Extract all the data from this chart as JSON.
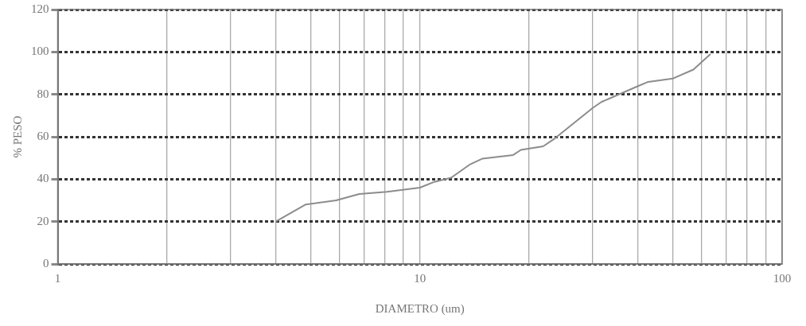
{
  "chart_data": {
    "type": "line",
    "xlabel": "DIAMETRO (um)",
    "ylabel": "% PESO",
    "x": [
      4.0,
      4.83,
      5.87,
      6.8,
      8.1,
      10,
      10.9,
      12.2,
      13.7,
      14.9,
      18.1,
      19.0,
      21.9,
      23.4,
      30.0,
      31.7,
      39.9,
      42.7,
      50,
      56.9,
      63.4
    ],
    "series": [
      {
        "color": "#8c8c8c",
        "values": [
          20,
          28,
          30,
          33,
          34,
          36,
          38.6,
          40.7,
          46.8,
          49.7,
          51.4,
          53.8,
          55.5,
          58.8,
          73.6,
          76.4,
          83.8,
          85.9,
          87.5,
          91.7,
          99
        ]
      }
    ],
    "log": "x",
    "xlim": [
      1,
      100
    ],
    "xticks": [
      1,
      {
        "value": 2,
        "label": null
      },
      {
        "value": 3,
        "label": null
      },
      {
        "value": 4,
        "label": null
      },
      {
        "value": 5,
        "label": null
      },
      {
        "value": 6,
        "label": null
      },
      {
        "value": 7,
        "label": null
      },
      {
        "value": 8,
        "label": null
      },
      {
        "value": 9,
        "label": null
      },
      10,
      {
        "value": 20,
        "label": null
      },
      {
        "value": 30,
        "label": null
      },
      {
        "value": 40,
        "label": null
      },
      {
        "value": 50,
        "label": null
      },
      {
        "value": 60,
        "label": null
      },
      {
        "value": 70,
        "label": null
      },
      {
        "value": 80,
        "label": null
      },
      {
        "value": 90,
        "label": null
      },
      100
    ],
    "ylim": [
      0,
      120
    ],
    "yticks": [
      0,
      20,
      40,
      60,
      80,
      100,
      120
    ],
    "grid": true,
    "marker": "none",
    "line_style": "solid"
  }
}
